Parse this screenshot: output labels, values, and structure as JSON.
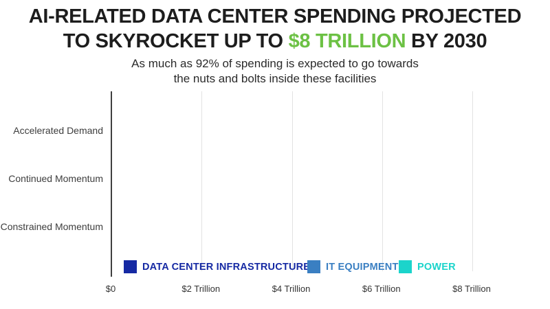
{
  "header": {
    "title": {
      "line1": "AI-RELATED DATA CENTER SPENDING PROJECTED",
      "line2_pre": "TO SKYROCKET UP TO ",
      "line2_highlight": "$8 TRILLION",
      "line2_post": " BY 2030",
      "highlight_color": "#6CC144",
      "text_color": "#1D1D1D"
    },
    "subtitle": {
      "line1": "As much as 92% of spending is expected to go towards",
      "line2": "the nuts and bolts inside these facilities"
    }
  },
  "chart_data": {
    "type": "bar",
    "orientation": "horizontal",
    "categories": [
      "Accelerated Demand",
      "Continued Momentum",
      "Constrained Momentum"
    ],
    "series": [
      {
        "name": "DATA CENTER INFRASTRUCTURE",
        "color": "#1529A3",
        "values": [
          0,
          0,
          0
        ]
      },
      {
        "name": "IT EQUIPMENT",
        "color": "#3A7FC2",
        "values": [
          0,
          0,
          0
        ]
      },
      {
        "name": "POWER",
        "color": "#1BD4CB",
        "values": [
          0,
          0,
          0
        ]
      }
    ],
    "x_axis": {
      "min": 0,
      "max": 8,
      "ticks": [
        {
          "value": 0,
          "label": "$0"
        },
        {
          "value": 2,
          "label": "$2 Trillion"
        },
        {
          "value": 4,
          "label": "$4 Trillion"
        },
        {
          "value": 6,
          "label": "$6 Trillion"
        },
        {
          "value": 8,
          "label": "$8 Trillion"
        }
      ]
    },
    "grid": "vertical-only",
    "legend_position": "bottom-inside",
    "bars_visible": false,
    "stacked": true,
    "axis_color": "#3F3F3F",
    "gridline_color": "#E2E2E2",
    "category_label_color": "#3D3D3D",
    "tick_label_color": "#333333"
  }
}
